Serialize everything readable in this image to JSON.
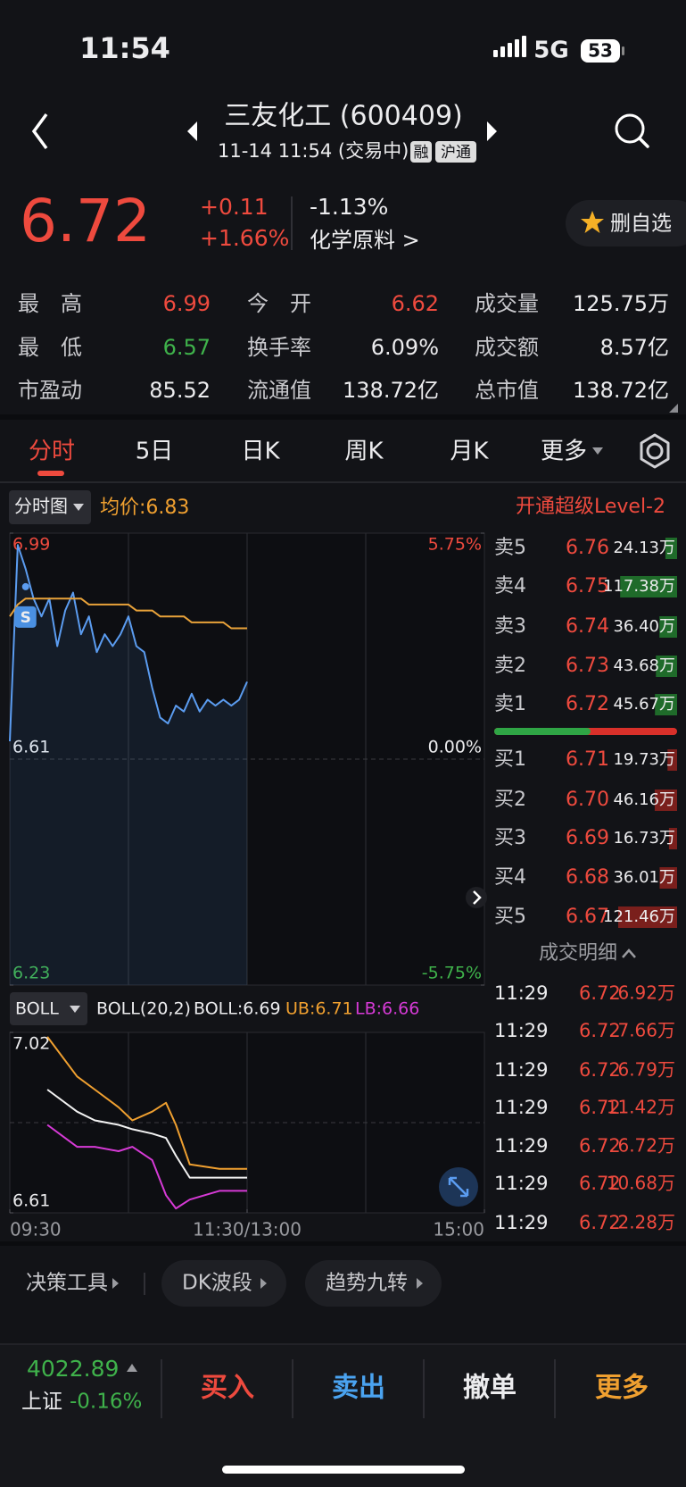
{
  "status_bar": {
    "time": "11:54",
    "network": "5G",
    "battery": "53"
  },
  "header": {
    "title": "三友化工 (600409)",
    "subtitle": "11-14 11:54 (交易中)",
    "badges": [
      "融",
      "沪通"
    ]
  },
  "quote": {
    "price": "6.72",
    "change": "+0.11",
    "change_pct": "+1.66%",
    "other_pct": "-1.13%",
    "industry": "化学原料 >",
    "watch_button": "删自选"
  },
  "stats": [
    {
      "label": "最　高",
      "value": "6.99"
    },
    {
      "label": "今　开",
      "value": "6.62"
    },
    {
      "label": "成交量",
      "value": "125.75万"
    },
    {
      "label": "最　低",
      "value": "6.57"
    },
    {
      "label": "换手率",
      "value": "6.09%"
    },
    {
      "label": "成交额",
      "value": "8.57亿"
    },
    {
      "label": "市盈动",
      "value": "85.52"
    },
    {
      "label": "流通值",
      "value": "138.72亿"
    },
    {
      "label": "总市值",
      "value": "138.72亿"
    }
  ],
  "tabs": [
    "分时",
    "5日",
    "日K",
    "周K",
    "月K",
    "更多"
  ],
  "chart_header": {
    "mode": "分时图",
    "avg": "均价:6.83",
    "level2": "开通超级Level-2"
  },
  "chart_data": [
    {
      "type": "line",
      "x": [
        0,
        4,
        8,
        12,
        16,
        20,
        24,
        28,
        32,
        36,
        40,
        44,
        48,
        52,
        56,
        60,
        64,
        68,
        72,
        76,
        80,
        84,
        88,
        92,
        96,
        100,
        104,
        108,
        112,
        116,
        120
      ],
      "xlim": [
        0,
        240
      ],
      "ylim": [
        6.23,
        6.99
      ],
      "yticks": [
        6.23,
        6.61,
        6.99
      ],
      "y2lim": [
        -5.75,
        5.75
      ],
      "y2ticks": [
        {
          "value": -5.75,
          "label": "-5.75%"
        },
        {
          "value": 0,
          "label": "0.00%"
        },
        {
          "value": 5.75,
          "label": "5.75%"
        }
      ],
      "series": [
        {
          "color": "#5b9cf0",
          "values": [
            6.64,
            6.97,
            6.93,
            6.88,
            6.85,
            6.88,
            6.8,
            6.86,
            6.89,
            6.82,
            6.85,
            6.79,
            6.82,
            6.8,
            6.82,
            6.85,
            6.8,
            6.79,
            6.73,
            6.68,
            6.67,
            6.7,
            6.69,
            6.72,
            6.69,
            6.71,
            6.7,
            6.71,
            6.7,
            6.71,
            6.74
          ]
        },
        {
          "color": "#e8a23a",
          "values": [
            6.85,
            6.87,
            6.88,
            6.88,
            6.88,
            6.88,
            6.88,
            6.88,
            6.88,
            6.88,
            6.87,
            6.87,
            6.87,
            6.87,
            6.87,
            6.87,
            6.86,
            6.86,
            6.86,
            6.85,
            6.85,
            6.85,
            6.85,
            6.84,
            6.84,
            6.84,
            6.84,
            6.84,
            6.83,
            6.83,
            6.83
          ]
        }
      ],
      "annotations": [
        {
          "x": 8,
          "y": 6.9,
          "label": "S"
        }
      ]
    },
    {
      "type": "line",
      "indicator": "BOLL",
      "title": "BOLL(20,2)",
      "x": [
        19,
        34,
        43,
        55,
        62,
        72,
        79,
        84,
        91,
        106,
        120
      ],
      "xlim": [
        0,
        240
      ],
      "ylim": [
        6.61,
        7.02
      ],
      "yticks": [
        6.61,
        7.02
      ],
      "xticks": [
        {
          "value": 0,
          "label": "09:30"
        },
        {
          "value": 120,
          "label": "11:30/13:00"
        },
        {
          "value": 240,
          "label": "15:00"
        }
      ],
      "series": [
        {
          "name": "BOLL:6.69",
          "color": "#f2f2f2",
          "values": [
            6.89,
            6.84,
            6.82,
            6.81,
            6.8,
            6.79,
            6.78,
            6.74,
            6.69,
            6.69,
            6.69
          ]
        },
        {
          "name": "UB:6.71",
          "color": "#f0a030",
          "values": [
            7.01,
            6.92,
            6.89,
            6.85,
            6.82,
            6.84,
            6.86,
            6.81,
            6.72,
            6.71,
            6.71
          ]
        },
        {
          "name": "LB:6.66",
          "color": "#d63ad6",
          "values": [
            6.81,
            6.76,
            6.76,
            6.75,
            6.76,
            6.73,
            6.65,
            6.62,
            6.64,
            6.66,
            6.66
          ]
        }
      ]
    }
  ],
  "order_book": {
    "asks": {
      "labels": [
        "卖5",
        "卖4",
        "卖3",
        "卖2",
        "卖1"
      ],
      "prices": [
        "6.76",
        "6.75",
        "6.74",
        "6.73",
        "6.72"
      ],
      "values": [
        24.13,
        117.38,
        36.4,
        43.68,
        45.67
      ],
      "value_labels": [
        "24.13万",
        "117.38万",
        "36.40万",
        "43.68万",
        "45.67万"
      ]
    },
    "bids": {
      "labels": [
        "买1",
        "买2",
        "买3",
        "买4",
        "买5"
      ],
      "prices": [
        "6.71",
        "6.70",
        "6.69",
        "6.68",
        "6.67"
      ],
      "values": [
        19.73,
        46.16,
        16.73,
        36.01,
        121.46
      ],
      "value_labels": [
        "19.73万",
        "46.16万",
        "16.73万",
        "36.01万",
        "121.46万"
      ]
    }
  },
  "trades": {
    "title": "成交明细",
    "rows": [
      [
        "11:29",
        "6.72",
        "6.92万"
      ],
      [
        "11:29",
        "6.72",
        "7.66万"
      ],
      [
        "11:29",
        "6.72",
        "6.79万"
      ],
      [
        "11:29",
        "6.72",
        "11.42万"
      ],
      [
        "11:29",
        "6.72",
        "6.72万"
      ],
      [
        "11:29",
        "6.72",
        "10.68万"
      ],
      [
        "11:29",
        "6.72",
        "2.28万"
      ]
    ]
  },
  "tools": [
    "决策工具",
    "DK波段",
    "趋势九转"
  ],
  "index": {
    "value": "4022.89",
    "name": "上证",
    "change": "-0.16%"
  },
  "actions": [
    "买入",
    "卖出",
    "撤单",
    "更多"
  ]
}
